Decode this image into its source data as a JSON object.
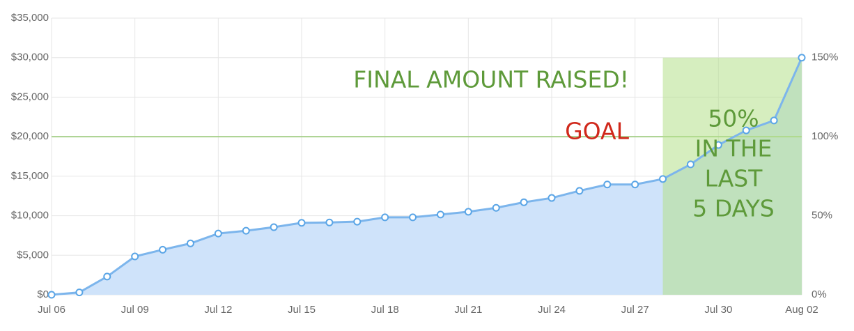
{
  "chart_data": {
    "type": "area",
    "categories": [
      "Jul 06",
      null,
      null,
      "Jul 09",
      null,
      null,
      "Jul 12",
      null,
      null,
      "Jul 15",
      null,
      null,
      "Jul 18",
      null,
      null,
      "Jul 21",
      null,
      null,
      "Jul 24",
      null,
      null,
      "Jul 27",
      null,
      null,
      "Jul 30",
      null,
      null,
      "Aug 02"
    ],
    "series": [
      {
        "color": "#7cb5ec",
        "values": [
          0,
          300,
          2300,
          4850,
          5700,
          6500,
          7750,
          8100,
          8550,
          9100,
          9150,
          9250,
          9800,
          9800,
          10150,
          10500,
          11000,
          11700,
          12250,
          13150,
          13950,
          13950,
          14650,
          16500,
          18950,
          20800,
          22050,
          30000
        ]
      }
    ],
    "ylim": [
      0,
      35000
    ],
    "yticks": [
      {
        "value": 0,
        "label": "$0"
      },
      {
        "value": 5000,
        "label": "$5,000"
      },
      {
        "value": 10000,
        "label": "$10,000"
      },
      {
        "value": 15000,
        "label": "$15,000"
      },
      {
        "value": 20000,
        "label": "$20,000"
      },
      {
        "value": 25000,
        "label": "$25,000"
      },
      {
        "value": 30000,
        "label": "$30,000"
      },
      {
        "value": 35000,
        "label": "$35,000"
      }
    ],
    "y2lim": [
      0,
      175
    ],
    "y2ticks": [
      {
        "value": 0,
        "label": "0%"
      },
      {
        "value": 50,
        "label": "50%"
      },
      {
        "value": 100,
        "label": "100%"
      },
      {
        "value": 150,
        "label": "150%"
      }
    ],
    "grid": true,
    "goal": {
      "value": 20000,
      "label": "GOAL",
      "color": "#a8d08d",
      "label_color": "#d0281b"
    },
    "highlight": {
      "start": 22,
      "end": 27,
      "color": "#b5e08a"
    },
    "annotations": {
      "final": "FINAL AMOUNT RAISED!",
      "last_days": [
        "50%",
        "IN THE",
        "LAST",
        "5 DAYS"
      ],
      "color": "#5e9a3a"
    }
  }
}
